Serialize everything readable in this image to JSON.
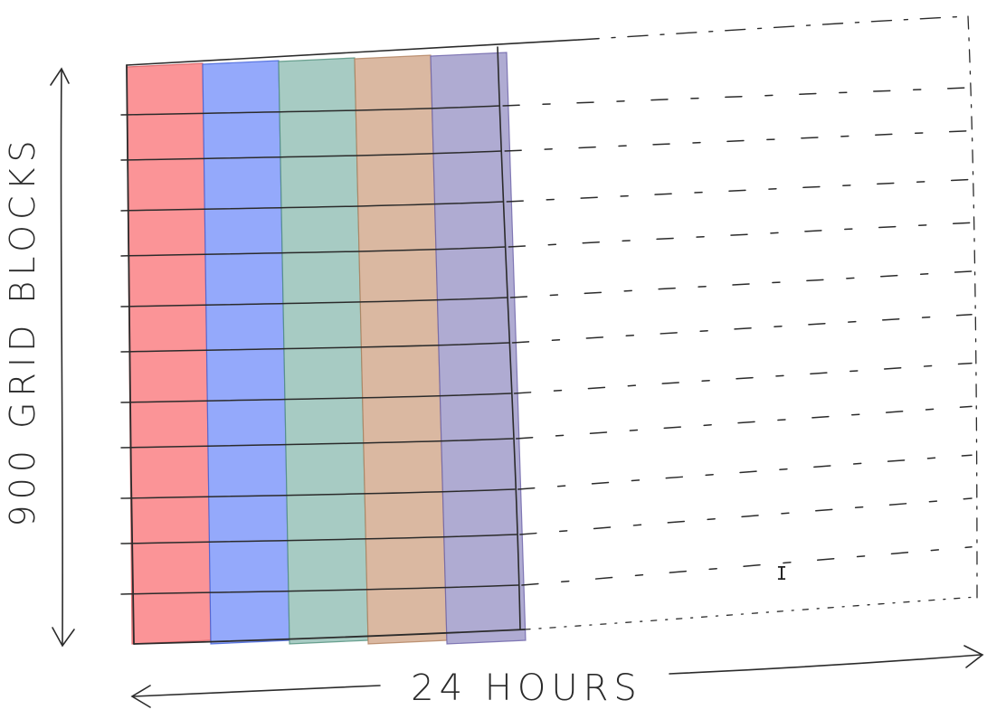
{
  "diagram": {
    "axis_y_label": "900 GRID BLOCKS",
    "axis_x_label": "24 HOURS",
    "column_colors": [
      "#fb8e91",
      "#8ea4fb",
      "#a2c8c0",
      "#d8b49c",
      "#aba7d0"
    ],
    "column_edge_colors": [
      "#d85a5e",
      "#3f5fd8",
      "#4f8f7a",
      "#b07f5d",
      "#6a60a8"
    ],
    "filled_columns": 5,
    "grid_rows": 12,
    "line_color": "#2b2b2b",
    "cursor_symbol": "I"
  }
}
